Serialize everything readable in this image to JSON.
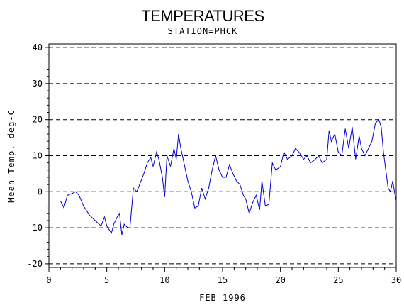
{
  "chart_data": {
    "type": "line",
    "title": "TEMPERATURES",
    "subtitle": "STATION=PHCK",
    "xlabel": "FEB 1996",
    "ylabel": "Mean Temp. deg-C",
    "xlim": [
      0,
      30
    ],
    "ylim": [
      -21,
      41
    ],
    "x_ticks": [
      0,
      5,
      10,
      15,
      20,
      25,
      30
    ],
    "y_ticks": [
      -20,
      -10,
      0,
      10,
      20,
      30,
      40
    ],
    "x_tick_labels": [
      "0",
      "5",
      "10",
      "15",
      "20",
      "25",
      "30"
    ],
    "y_tick_labels": [
      "-20",
      "-10",
      "0",
      "10",
      "20",
      "30",
      "40"
    ],
    "gridlines": "horizontal-dashed",
    "line_color": "#0000cc",
    "series": [
      {
        "x": [
          1.0,
          1.3,
          1.6,
          2.0,
          2.3,
          2.6,
          3.0,
          3.5,
          4.0,
          4.5,
          4.8,
          5.0,
          5.2,
          5.4,
          5.6,
          5.9,
          6.1,
          6.3,
          6.5,
          6.8,
          7.0,
          7.3,
          7.6,
          7.9,
          8.2,
          8.5,
          8.8,
          9.0,
          9.3,
          9.5,
          9.8,
          10.0,
          10.2,
          10.5,
          10.8,
          11.0,
          11.2,
          11.4,
          11.6,
          11.8,
          12.0,
          12.3,
          12.6,
          12.9,
          13.2,
          13.5,
          13.8,
          14.1,
          14.4,
          14.7,
          15.0,
          15.3,
          15.6,
          15.9,
          16.2,
          16.5,
          16.8,
          17.0,
          17.3,
          17.6,
          17.9,
          18.2,
          18.4,
          18.7,
          19.0,
          19.3,
          19.6,
          20.0,
          20.3,
          20.6,
          21.0,
          21.3,
          21.6,
          22.0,
          22.3,
          22.6,
          23.0,
          23.3,
          23.6,
          24.0,
          24.2,
          24.4,
          24.7,
          25.0,
          25.3,
          25.6,
          25.9,
          26.2,
          26.5,
          26.8,
          27.0,
          27.3,
          27.6,
          27.9,
          28.2,
          28.5,
          28.7,
          28.9,
          29.1,
          29.3,
          29.5,
          29.7,
          29.9,
          30.0
        ],
        "y": [
          -2.5,
          -4.5,
          -1.0,
          -0.5,
          0.0,
          -1.0,
          -4.0,
          -6.5,
          -8.0,
          -9.5,
          -7.0,
          -9.5,
          -10.5,
          -11.5,
          -9.0,
          -7.0,
          -6.0,
          -12.0,
          -9.0,
          -10.0,
          -10.0,
          1.0,
          0.0,
          2.5,
          5.0,
          8.0,
          9.5,
          7.0,
          11.0,
          9.0,
          4.0,
          -1.5,
          10.0,
          7.0,
          12.0,
          9.0,
          16.0,
          12.0,
          9.0,
          6.0,
          3.0,
          0.0,
          -4.5,
          -4.0,
          1.0,
          -2.0,
          1.0,
          6.0,
          10.0,
          6.0,
          4.0,
          4.0,
          7.5,
          5.0,
          3.0,
          2.0,
          -1.0,
          -2.0,
          -6.0,
          -3.0,
          -1.0,
          -5.0,
          3.0,
          -4.0,
          -3.5,
          8.0,
          6.0,
          7.0,
          11.0,
          9.0,
          10.0,
          12.0,
          11.0,
          9.0,
          10.0,
          8.0,
          9.0,
          10.0,
          8.0,
          9.0,
          17.0,
          14.0,
          16.0,
          11.0,
          10.0,
          17.5,
          12.0,
          18.0,
          9.0,
          15.5,
          12.0,
          10.0,
          12.0,
          14.0,
          19.0,
          20.0,
          18.0,
          11.0,
          6.0,
          1.0,
          0.0,
          3.0,
          -1.0,
          -2.5
        ]
      }
    ]
  }
}
